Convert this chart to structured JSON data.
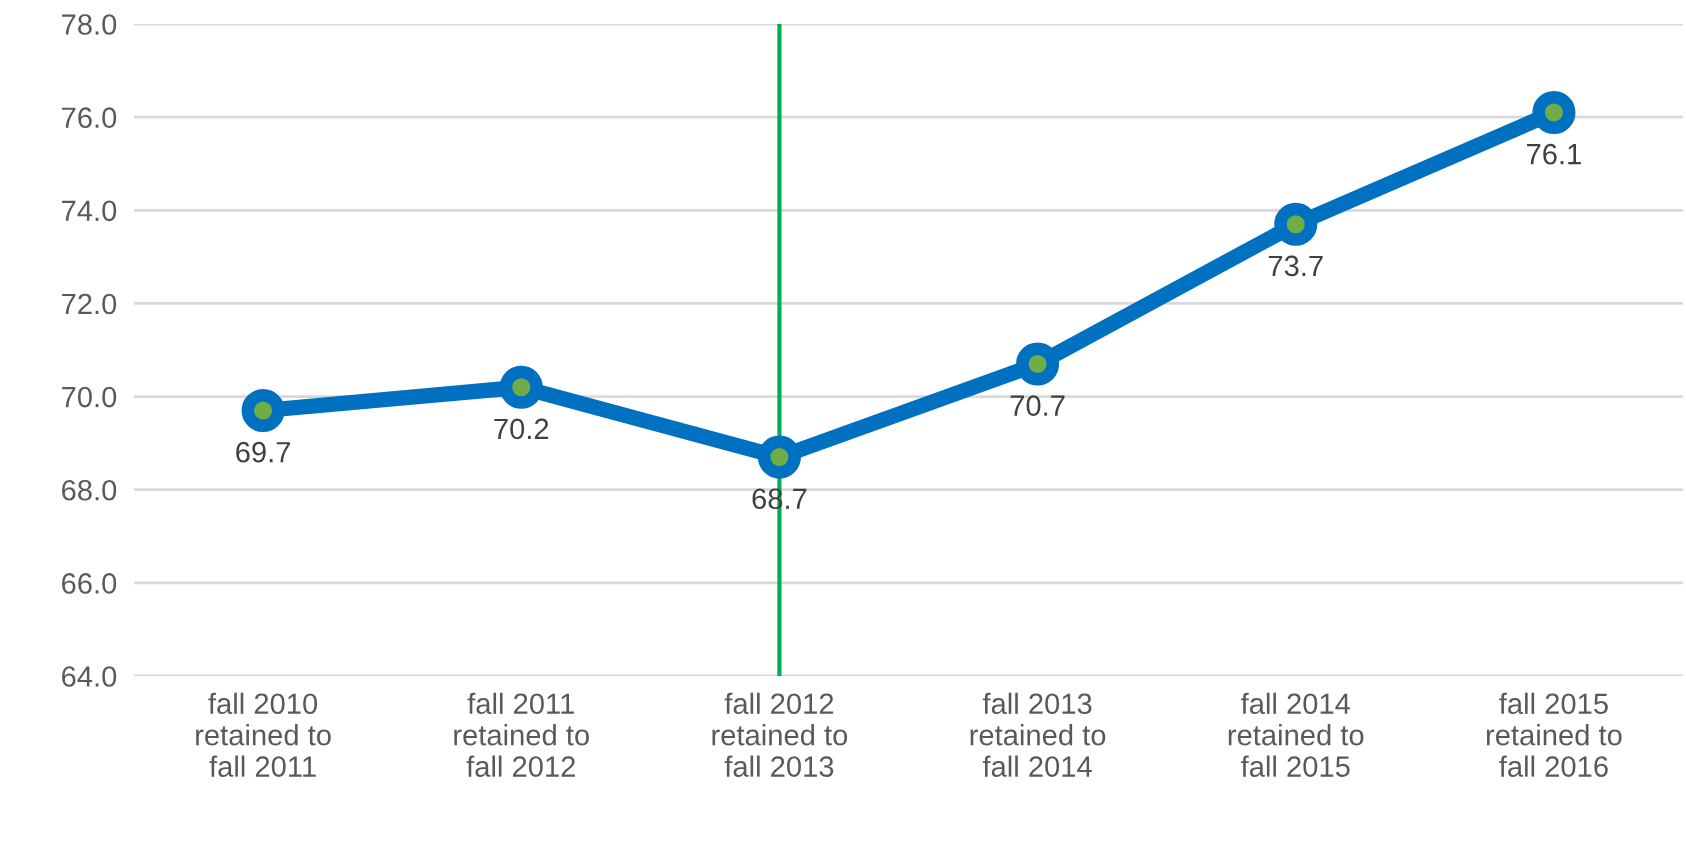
{
  "chart_data": {
    "type": "line",
    "categories": [
      "fall 2010\nretained to\nfall 2011",
      "fall 2011\nretained to\nfall 2012",
      "fall 2012\nretained to\nfall 2013",
      "fall 2013\nretained to\nfall 2014",
      "fall 2014\nretained to\nfall 2015",
      "fall 2015\nretained to\nfall 2016"
    ],
    "series": [
      {
        "color": "#0070c0",
        "values": [
          69.7,
          70.2,
          68.7,
          70.7,
          73.7,
          76.1
        ]
      }
    ],
    "ylim": [
      64,
      78
    ],
    "yticks": [
      {
        "value": 64,
        "label": "64.0"
      },
      {
        "value": 66,
        "label": "66.0"
      },
      {
        "value": 68,
        "label": "68.0"
      },
      {
        "value": 70,
        "label": "70.0"
      },
      {
        "value": 72,
        "label": "72.0"
      },
      {
        "value": 74,
        "label": "74.0"
      },
      {
        "value": 76,
        "label": "76.0"
      },
      {
        "value": 78,
        "label": "78.0"
      }
    ],
    "ref_lines": [
      {
        "axis": "x",
        "value": "fall 2012\nretained to\nfall 2013",
        "color": "#00b050"
      }
    ],
    "data_labels": true,
    "grid": "y",
    "marker": "circle",
    "line_style": "solid",
    "legend": false
  }
}
